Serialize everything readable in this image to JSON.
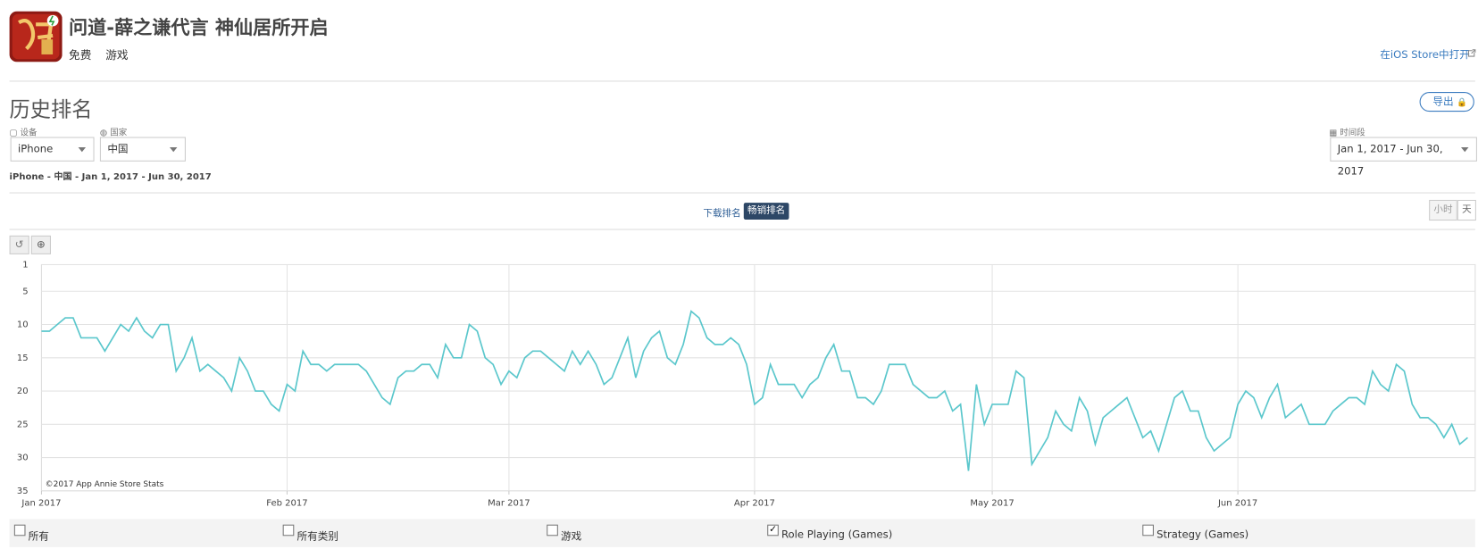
{
  "header": {
    "title": "问道-薛之谦代言 神仙居所开启",
    "price": "免费",
    "category": "游戏",
    "store_link": "在iOS Store中打开"
  },
  "section_title": "历史排名",
  "export_button": "导出",
  "filters": {
    "device_label": "设备",
    "device": "iPhone",
    "country_label": "国家",
    "country": "中国",
    "period_label": "时间段",
    "period": "Jan 1, 2017 - Jun 30, 2017"
  },
  "summary": "iPhone - 中国 - Jan 1, 2017 - Jun 30, 2017",
  "tabs": [
    "下载排名",
    "畅销排名"
  ],
  "granularity": [
    "小时",
    "天"
  ],
  "legend_unchecked": [
    "所有",
    "所有类别",
    "游戏",
    "Strategy (Games)"
  ],
  "chart_data": {
    "type": "line",
    "watermark": "©2017 App Annie Store Stats",
    "ylim": [
      1,
      35
    ],
    "y_inverted": true,
    "yticks": [
      1,
      5,
      10,
      15,
      20,
      25,
      30,
      35
    ],
    "xlim": [
      0,
      180
    ],
    "xticks": [
      {
        "value": 0,
        "label": "Jan 2017"
      },
      {
        "value": 31,
        "label": "Feb 2017"
      },
      {
        "value": 59,
        "label": "Mar 2017"
      },
      {
        "value": 90,
        "label": "Apr 2017"
      },
      {
        "value": 120,
        "label": "May 2017"
      },
      {
        "value": 151,
        "label": "Jun 2017"
      }
    ],
    "grid": true,
    "series": [
      {
        "name": "Role Playing (Games)",
        "color": "#5bc7cc",
        "values": [
          11,
          11,
          10,
          9,
          9,
          12,
          12,
          12,
          14,
          12,
          10,
          11,
          9,
          11,
          12,
          10,
          10,
          17,
          15,
          12,
          17,
          16,
          17,
          18,
          20,
          15,
          17,
          20,
          20,
          22,
          23,
          19,
          20,
          14,
          16,
          16,
          17,
          16,
          16,
          16,
          16,
          17,
          19,
          21,
          22,
          18,
          17,
          17,
          16,
          16,
          18,
          13,
          15,
          15,
          10,
          11,
          15,
          16,
          19,
          17,
          18,
          15,
          14,
          14,
          15,
          16,
          17,
          14,
          16,
          14,
          16,
          19,
          18,
          15,
          12,
          18,
          14,
          12,
          11,
          15,
          16,
          13,
          8,
          9,
          12,
          13,
          13,
          12,
          13,
          16,
          22,
          21,
          16,
          19,
          19,
          19,
          21,
          19,
          18,
          15,
          13,
          17,
          17,
          21,
          21,
          22,
          20,
          16,
          16,
          16,
          19,
          20,
          21,
          21,
          20,
          23,
          22,
          32,
          19,
          25,
          22,
          22,
          22,
          17,
          18,
          31,
          29,
          27,
          23,
          25,
          26,
          21,
          23,
          28,
          24,
          23,
          22,
          21,
          24,
          27,
          26,
          29,
          25,
          21,
          20,
          23,
          23,
          27,
          29,
          28,
          27,
          22,
          20,
          21,
          24,
          21,
          19,
          24,
          23,
          22,
          25,
          25,
          25,
          23,
          22,
          21,
          21,
          22,
          17,
          19,
          20,
          16,
          17,
          22,
          24,
          24,
          25,
          27,
          25,
          28,
          27
        ]
      }
    ]
  }
}
